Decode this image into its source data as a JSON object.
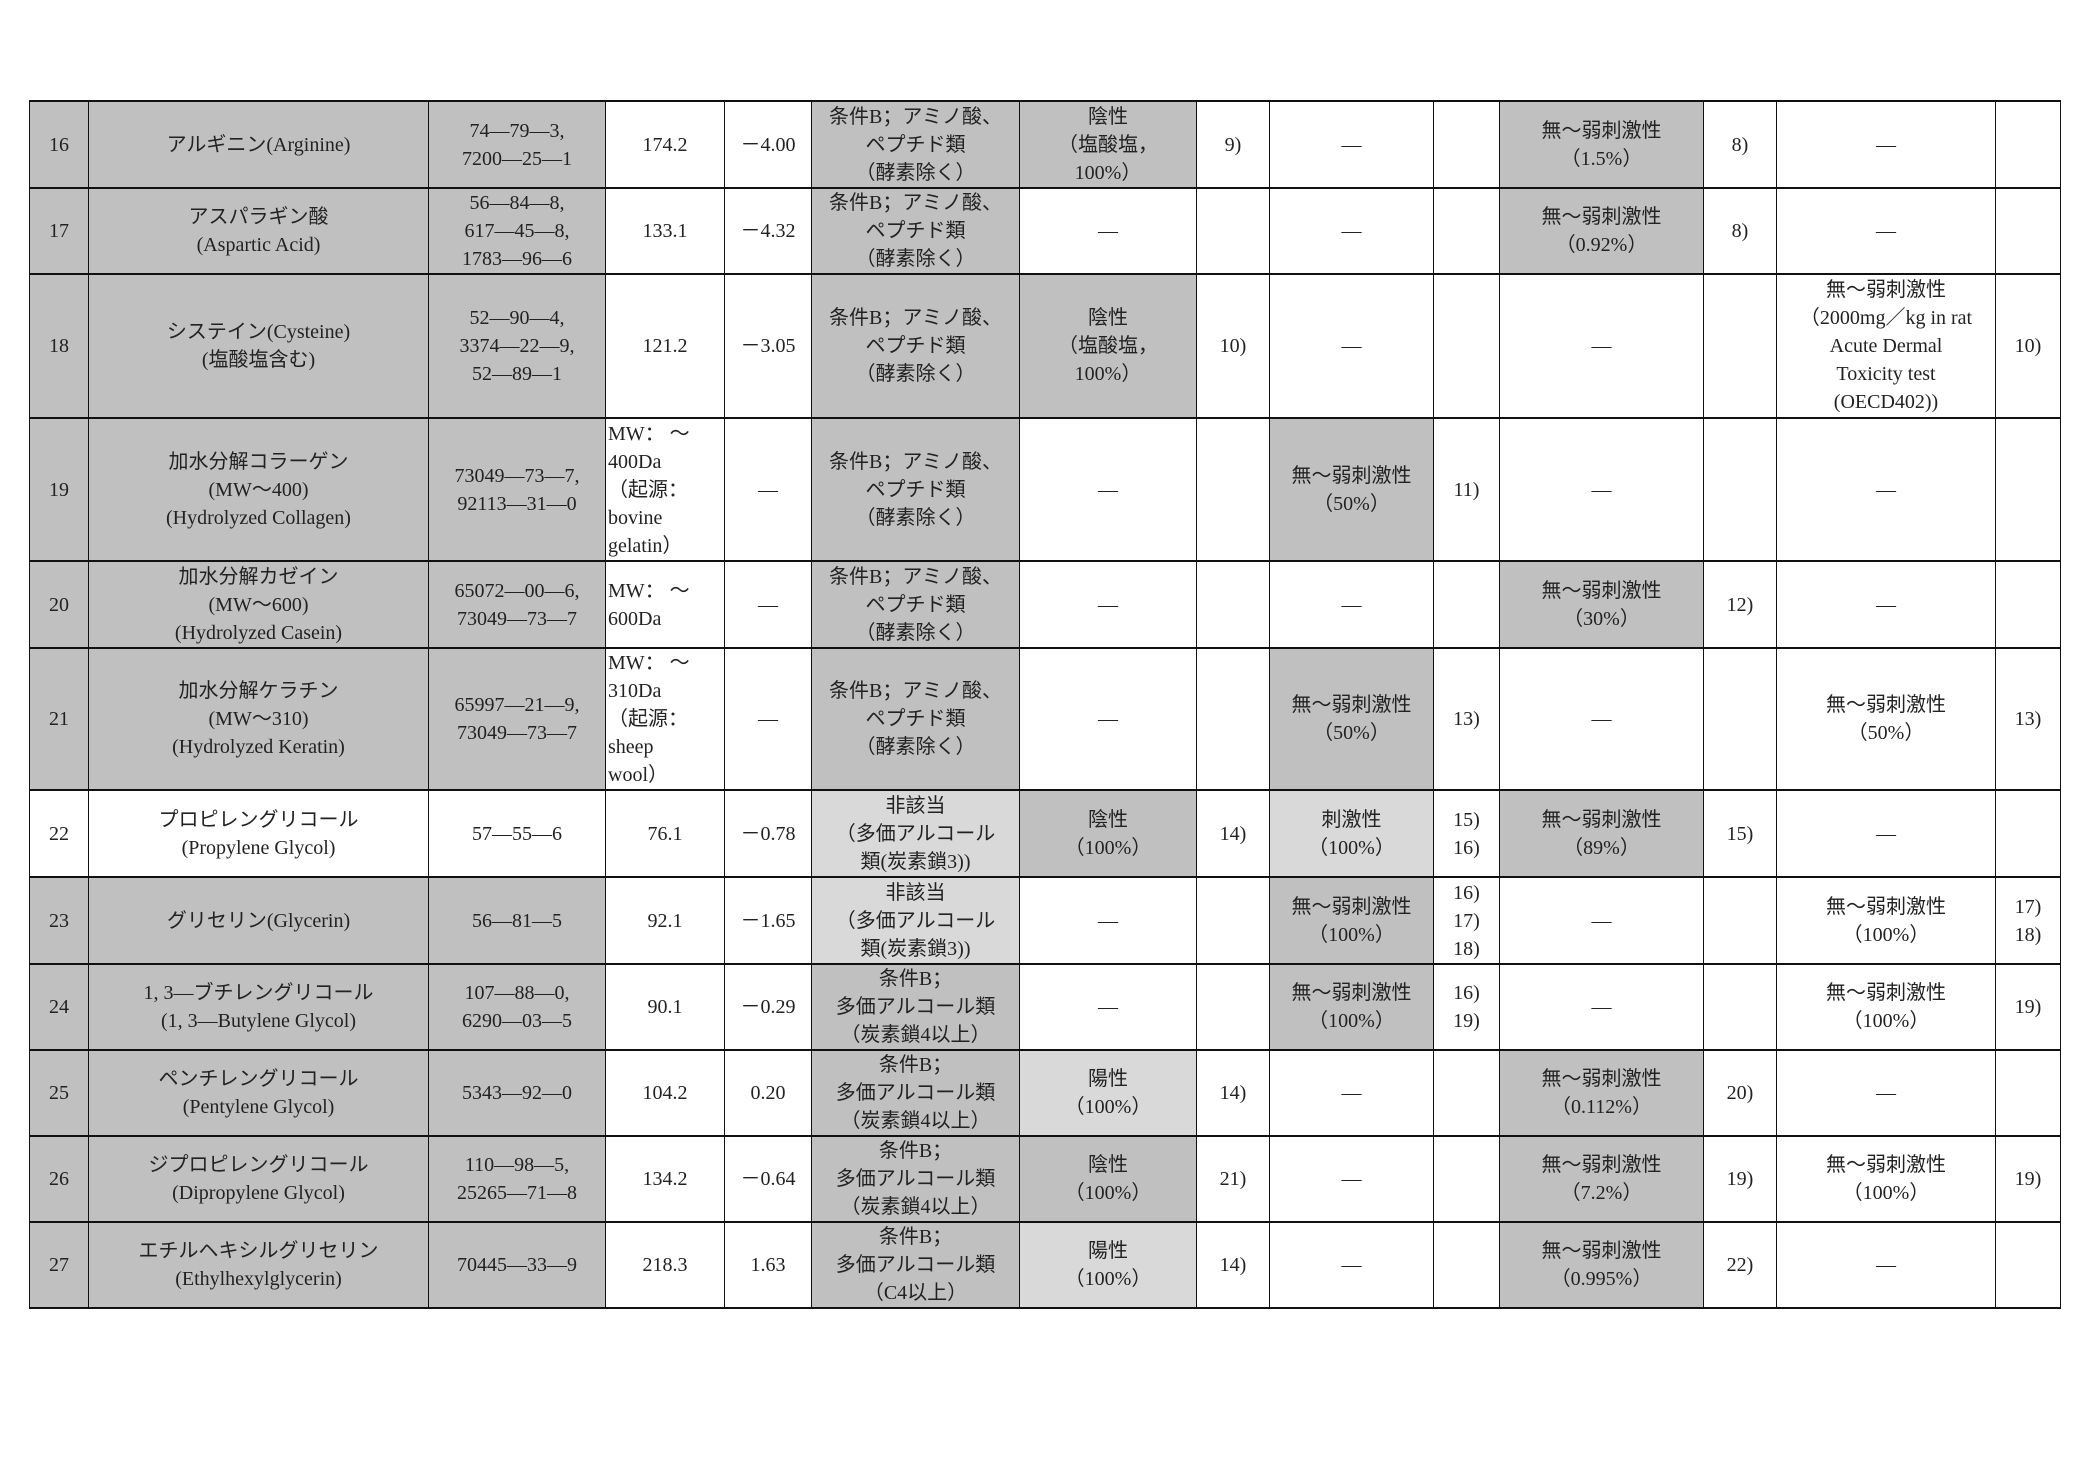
{
  "colors": {
    "shade_dark": "#c0c0c0",
    "shade_light": "#d9d9d9",
    "border": "#111111"
  },
  "rows": [
    {
      "cells": [
        "16",
        "アルギニン(Arginine)",
        "74—79—3,\n7200—25—1",
        "174.2",
        "－4.00",
        "条件B；アミノ酸、\nペプチド類\n（酵素除く）",
        "陰性\n（塩酸塩，\n100%）",
        "9)",
        "—",
        "",
        "無～弱刺激性\n（1.5%）",
        "8)",
        "—",
        ""
      ],
      "shade": [
        "g",
        "g",
        "g",
        "",
        "",
        "g",
        "g",
        "",
        "",
        "",
        "g",
        "",
        "",
        ""
      ]
    },
    {
      "cells": [
        "17",
        "アスパラギン酸\n(Aspartic Acid)",
        "56—84—8,\n617—45—8,\n1783—96—6",
        "133.1",
        "－4.32",
        "条件B；アミノ酸、\nペプチド類\n（酵素除く）",
        "—",
        "",
        "—",
        "",
        "無～弱刺激性\n（0.92%）",
        "8)",
        "—",
        ""
      ],
      "shade": [
        "g",
        "g",
        "g",
        "",
        "",
        "g",
        "",
        "",
        "",
        "",
        "g",
        "",
        "",
        ""
      ]
    },
    {
      "cells": [
        "18",
        "システイン(Cysteine)\n(塩酸塩含む)",
        "52—90—4,\n3374—22—9,\n52—89—1",
        "121.2",
        "－3.05",
        "条件B；アミノ酸、\nペプチド類\n（酵素除く）",
        "陰性\n（塩酸塩，\n100%）",
        "10)",
        "—",
        "",
        "—",
        "",
        "無～弱刺激性\n（2000mg／kg in rat\nAcute Dermal\nToxicity test\n(OECD402))",
        "10)"
      ],
      "shade": [
        "g",
        "g",
        "g",
        "",
        "",
        "g",
        "g",
        "",
        "",
        "",
        "",
        "",
        "",
        ""
      ]
    },
    {
      "cells": [
        "19",
        "加水分解コラーゲン\n(MW～400)\n(Hydrolyzed Collagen)",
        "73049—73—7,\n92113—31—0",
        "MW： ～\n400Da\n（起源：\nbovine\ngelatin）",
        "—",
        "条件B；アミノ酸、\nペプチド類\n（酵素除く）",
        "—",
        "",
        "無～弱刺激性\n（50%）",
        "11)",
        "—",
        "",
        "—",
        ""
      ],
      "shade": [
        "g",
        "g",
        "g",
        "",
        "",
        "g",
        "",
        "",
        "g",
        "",
        "",
        "",
        "",
        ""
      ]
    },
    {
      "cells": [
        "20",
        "加水分解カゼイン\n(MW～600)\n(Hydrolyzed Casein)",
        "65072—00—6,\n73049—73—7",
        "MW： ～\n600Da",
        "—",
        "条件B；アミノ酸、\nペプチド類\n（酵素除く）",
        "—",
        "",
        "—",
        "",
        "無～弱刺激性\n（30%）",
        "12)",
        "—",
        ""
      ],
      "shade": [
        "g",
        "g",
        "g",
        "",
        "",
        "g",
        "",
        "",
        "",
        "",
        "g",
        "",
        "",
        ""
      ]
    },
    {
      "cells": [
        "21",
        "加水分解ケラチン\n(MW～310)\n(Hydrolyzed Keratin)",
        "65997—21—9,\n73049—73—7",
        "MW： ～\n310Da\n（起源：\nsheep\nwool）",
        "—",
        "条件B；アミノ酸、\nペプチド類\n（酵素除く）",
        "—",
        "",
        "無～弱刺激性\n（50%）",
        "13)",
        "—",
        "",
        "無～弱刺激性\n（50%）",
        "13)"
      ],
      "shade": [
        "g",
        "g",
        "g",
        "",
        "",
        "g",
        "",
        "",
        "g",
        "",
        "",
        "",
        "",
        ""
      ]
    },
    {
      "cells": [
        "22",
        "プロピレングリコール\n(Propylene Glycol)",
        "57—55—6",
        "76.1",
        "－0.78",
        "非該当\n（多価アルコール\n類(炭素鎖3))",
        "陰性\n（100%）",
        "14)",
        "刺激性\n（100%）",
        "15)\n16)",
        "無～弱刺激性\n（89%）",
        "15)",
        "—",
        ""
      ],
      "shade": [
        "",
        "",
        "",
        "",
        "",
        "l",
        "g",
        "",
        "l",
        "",
        "g",
        "",
        "",
        ""
      ]
    },
    {
      "cells": [
        "23",
        "グリセリン(Glycerin)",
        "56—81—5",
        "92.1",
        "－1.65",
        "非該当\n（多価アルコール\n類(炭素鎖3))",
        "—",
        "",
        "無～弱刺激性\n（100%）",
        "16)\n17)\n18)",
        "—",
        "",
        "無～弱刺激性\n（100%）",
        "17)\n18)"
      ],
      "shade": [
        "g",
        "g",
        "g",
        "",
        "",
        "l",
        "",
        "",
        "g",
        "",
        "",
        "",
        "",
        ""
      ]
    },
    {
      "cells": [
        "24",
        "1, 3—ブチレングリコール\n(1, 3—Butylene Glycol)",
        "107—88—0,\n6290—03—5",
        "90.1",
        "－0.29",
        "条件B；\n多価アルコール類\n（炭素鎖4以上）",
        "—",
        "",
        "無～弱刺激性\n（100%）",
        "16)\n19)",
        "—",
        "",
        "無～弱刺激性\n（100%）",
        "19)"
      ],
      "shade": [
        "g",
        "g",
        "g",
        "",
        "",
        "g",
        "",
        "",
        "g",
        "",
        "",
        "",
        "",
        ""
      ]
    },
    {
      "cells": [
        "25",
        "ペンチレングリコール\n(Pentylene Glycol)",
        "5343—92—0",
        "104.2",
        "0.20",
        "条件B；\n多価アルコール類\n（炭素鎖4以上）",
        "陽性\n（100%）",
        "14)",
        "—",
        "",
        "無～弱刺激性\n（0.112%）",
        "20)",
        "—",
        ""
      ],
      "shade": [
        "g",
        "g",
        "g",
        "",
        "",
        "g",
        "l",
        "",
        "",
        "",
        "g",
        "",
        "",
        ""
      ]
    },
    {
      "cells": [
        "26",
        "ジプロピレングリコール\n(Dipropylene Glycol)",
        "110—98—5,\n25265—71—8",
        "134.2",
        "－0.64",
        "条件B；\n多価アルコール類\n（炭素鎖4以上）",
        "陰性\n（100%）",
        "21)",
        "—",
        "",
        "無～弱刺激性\n（7.2%）",
        "19)",
        "無～弱刺激性\n（100%）",
        "19)"
      ],
      "shade": [
        "g",
        "g",
        "g",
        "",
        "",
        "g",
        "g",
        "",
        "",
        "",
        "g",
        "",
        "",
        ""
      ]
    },
    {
      "cells": [
        "27",
        "エチルヘキシルグリセリン\n(Ethylhexylglycerin)",
        "70445—33—9",
        "218.3",
        "1.63",
        "条件B；\n多価アルコール類\n（C4以上）",
        "陽性\n（100%）",
        "14)",
        "—",
        "",
        "無～弱刺激性\n（0.995%）",
        "22)",
        "—",
        ""
      ],
      "shade": [
        "g",
        "g",
        "g",
        "",
        "",
        "g",
        "l",
        "",
        "",
        "",
        "g",
        "",
        "",
        ""
      ]
    }
  ]
}
